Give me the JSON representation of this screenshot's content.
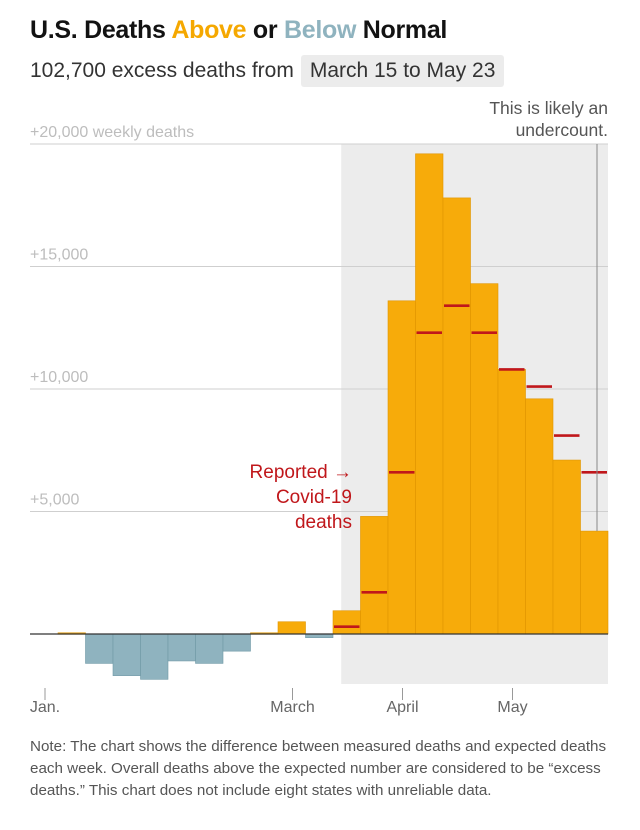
{
  "header": {
    "title_start": "U.S. Deaths ",
    "title_above": "Above",
    "title_mid": " or ",
    "title_below": "Below",
    "title_end": " Normal",
    "subtitle_text": "102,700 excess deaths from",
    "subtitle_range": "March 15 to May 23"
  },
  "annotations": {
    "undercount_line1": "This is likely an",
    "undercount_line2": "undercount.",
    "reported_line1": "Reported →",
    "reported_line2": "Covid-19",
    "reported_line3": "deaths"
  },
  "note": "Note: The chart shows the difference between measured deaths and expected deaths each week. Overall deaths above the expected number are considered to be “excess deaths.” This chart does not include eight states with unreliable data.",
  "colors": {
    "above": "#f7ab0a",
    "above_stroke": "#e09500",
    "below": "#8fb3bf",
    "below_stroke": "#6f98a6",
    "reported": "#c0171b",
    "shade": "#ececec",
    "grid": "#cfcfcf"
  },
  "chart_data": {
    "type": "bar",
    "title": "U.S. Deaths Above or Below Normal",
    "xlabel": "",
    "ylabel": "weekly deaths",
    "ylim": [
      -1800,
      20300
    ],
    "yticks": [
      {
        "value": 20000,
        "label": "+20,000 weekly deaths"
      },
      {
        "value": 15000,
        "label": "+15,000"
      },
      {
        "value": 10000,
        "label": "+10,000"
      },
      {
        "value": 5000,
        "label": "+5,000"
      }
    ],
    "xticks": [
      {
        "label": "Jan.",
        "week": 0
      },
      {
        "label": "March",
        "week": 9
      },
      {
        "label": "April",
        "week": 13
      },
      {
        "label": "May",
        "week": 17
      }
    ],
    "shaded_weeks": [
      10.3,
      20
    ],
    "series": [
      {
        "name": "Excess deaths",
        "values": [
          50,
          -1200,
          -1700,
          -1850,
          -1100,
          -1200,
          -700,
          50,
          500,
          -150,
          950,
          4800,
          13600,
          19600,
          17800,
          14300,
          10800,
          9600,
          7100,
          4200
        ]
      },
      {
        "name": "Reported Covid-19 deaths",
        "values": [
          0,
          0,
          0,
          0,
          0,
          0,
          0,
          0,
          0,
          0,
          300,
          1700,
          6600,
          12300,
          13400,
          12300,
          10800,
          10100,
          8100,
          6600
        ]
      }
    ]
  }
}
